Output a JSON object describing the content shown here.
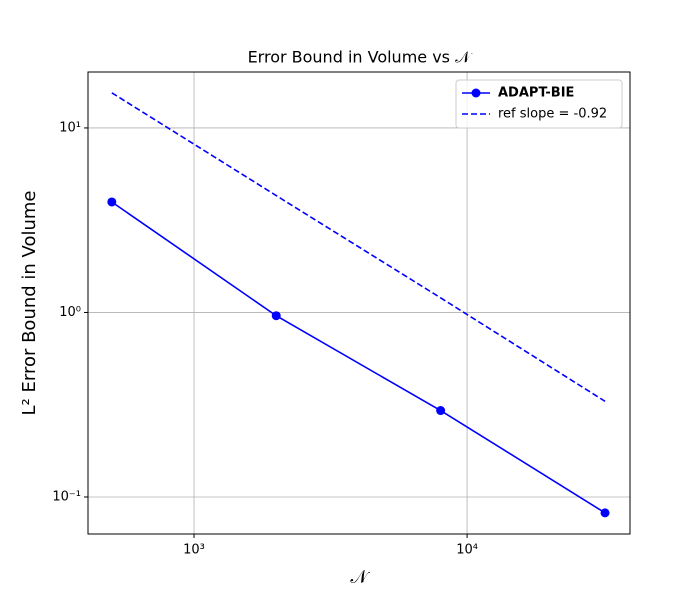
{
  "chart_data": {
    "type": "line",
    "title": "Error Bound in Volume vs 𝒩",
    "x_label": "𝒩",
    "y_label": "L² Error Bound in Volume",
    "x": [
      500,
      2000,
      8000,
      32000
    ],
    "series": [
      {
        "name": "ADAPT-BIE",
        "color": "#0000ff",
        "linestyle": "solid",
        "marker": "o",
        "values": [
          3.97,
          0.96,
          0.294,
          0.082
        ]
      },
      {
        "name": "ref slope = -0.92",
        "color": "#0000ff",
        "linestyle": "dashed",
        "marker": "none",
        "values": [
          15.5,
          4.3,
          1.2,
          0.33
        ]
      }
    ],
    "xscale": "log",
    "yscale": "log",
    "xlim": [
      409,
      39500
    ],
    "ylim": [
      0.063,
      20.1
    ],
    "xticks": [
      {
        "value": 1000,
        "label": "10³"
      },
      {
        "value": 10000,
        "label": "10⁴"
      }
    ],
    "yticks": [
      {
        "value": 0.1,
        "label": "10⁻¹"
      },
      {
        "value": 1,
        "label": "10⁰"
      },
      {
        "value": 10,
        "label": "10¹"
      }
    ],
    "grid": true,
    "legend": "upper right"
  }
}
